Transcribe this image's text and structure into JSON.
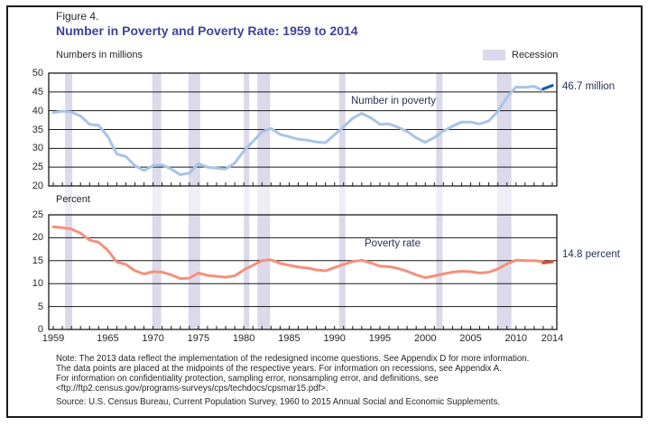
{
  "header": {
    "figure_label": "Figure 4.",
    "title": "Number in Poverty and Poverty Rate: 1959 to 2014"
  },
  "legend": {
    "label": "Recession",
    "swatch_color": "#dcd9eb"
  },
  "style": {
    "grid_color": "#1a1a1a",
    "recession_band_color": "#dcd9eb",
    "title_color": "#41419b",
    "text_color": "#26262b"
  },
  "xtick_years": [
    1959,
    1965,
    1970,
    1975,
    1980,
    1985,
    1990,
    1995,
    2000,
    2005,
    2010,
    2014
  ],
  "recessions": [
    [
      1960.3,
      1961.1
    ],
    [
      1969.9,
      1970.9
    ],
    [
      1973.9,
      1975.2
    ],
    [
      1980.0,
      1980.6
    ],
    [
      1981.5,
      1982.9
    ],
    [
      1990.5,
      1991.2
    ],
    [
      2001.2,
      2001.9
    ],
    [
      2007.9,
      2009.5
    ]
  ],
  "chart_data": [
    {
      "type": "line",
      "title": "Number in poverty",
      "label": "Number in poverty",
      "end_label": "46.7 million",
      "ylabel": "Numbers in millions",
      "xlabel": "",
      "ylim": [
        20,
        50
      ],
      "yticks": [
        20,
        25,
        30,
        35,
        40,
        45,
        50
      ],
      "grid": true,
      "legend_position": "none",
      "series": [
        {
          "name": "Number in poverty",
          "color": "#a7c4e5",
          "width": 3,
          "year_start": 1959,
          "values": [
            39.5,
            39.9,
            39.6,
            38.6,
            36.4,
            36.1,
            33.2,
            28.5,
            27.8,
            25.4,
            24.1,
            25.4,
            25.6,
            24.5,
            23.0,
            23.4,
            25.9,
            25.0,
            24.7,
            24.5,
            26.1,
            29.3,
            31.8,
            34.4,
            35.3,
            33.7,
            33.1,
            32.4,
            32.2,
            31.7,
            31.5,
            33.6,
            35.7,
            38.0,
            39.3,
            38.1,
            36.4,
            36.5,
            35.6,
            34.5,
            32.8,
            31.6,
            32.9,
            34.6,
            35.9,
            37.0,
            37.0,
            36.5,
            37.3,
            39.8,
            43.6,
            46.3,
            46.2,
            46.5,
            45.3
          ]
        },
        {
          "name": "Number in poverty (2013 redesigned income questions to 2014)",
          "color": "#1b5ba7",
          "width": 3.2,
          "years": [
            2013,
            2014
          ],
          "values": [
            45.8,
            46.7
          ]
        }
      ]
    },
    {
      "type": "line",
      "title": "Poverty rate",
      "label": "Poverty rate",
      "end_label": "14.8 percent",
      "ylabel": "Percent",
      "xlabel": "",
      "ylim": [
        0,
        25
      ],
      "yticks": [
        0,
        5,
        10,
        15,
        20,
        25
      ],
      "grid": true,
      "legend_position": "none",
      "series": [
        {
          "name": "Poverty rate",
          "color": "#f5907b",
          "width": 3,
          "year_start": 1959,
          "values": [
            22.4,
            22.2,
            21.9,
            21.0,
            19.5,
            19.0,
            17.3,
            14.7,
            14.2,
            12.8,
            12.1,
            12.6,
            12.5,
            11.9,
            11.1,
            11.2,
            12.3,
            11.8,
            11.6,
            11.4,
            11.7,
            13.0,
            14.0,
            15.0,
            15.2,
            14.4,
            14.0,
            13.6,
            13.4,
            13.0,
            12.8,
            13.5,
            14.2,
            14.8,
            15.1,
            14.5,
            13.8,
            13.7,
            13.3,
            12.7,
            11.9,
            11.3,
            11.7,
            12.1,
            12.5,
            12.7,
            12.6,
            12.3,
            12.5,
            13.2,
            14.3,
            15.1,
            15.0,
            15.0,
            14.8
          ]
        },
        {
          "name": "Poverty rate (2013 redesigned income questions to 2014)",
          "color": "#dc4632",
          "width": 3.2,
          "years": [
            2013,
            2014
          ],
          "values": [
            14.5,
            14.8
          ]
        }
      ]
    }
  ],
  "notes": {
    "lines": [
      "Note: The 2013 data reflect the implementation of the redesigned income questions. See Appendix D for more information.",
      "The data points are placed at the midpoints of the respective years. For information on recessions, see Appendix A.",
      "For information on confidentiality protection, sampling error, nonsampling error, and definitions, see",
      "<ftp://ftp2.census.gov/programs-surveys/cps/techdocs/cpsmar15.pdf>."
    ],
    "source": "Source: U.S. Census Bureau, Current Population Survey, 1960 to 2015 Annual Social and Economic Supplements."
  }
}
